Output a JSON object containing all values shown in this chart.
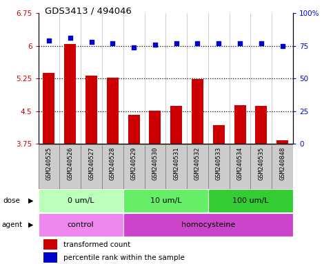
{
  "title": "GDS3413 / 494046",
  "samples": [
    "GSM240525",
    "GSM240526",
    "GSM240527",
    "GSM240528",
    "GSM240529",
    "GSM240530",
    "GSM240531",
    "GSM240532",
    "GSM240533",
    "GSM240534",
    "GSM240535",
    "GSM240848"
  ],
  "bar_values": [
    5.38,
    6.05,
    5.32,
    5.27,
    4.41,
    4.51,
    4.63,
    5.24,
    4.18,
    4.64,
    4.63,
    3.84
  ],
  "dot_values": [
    79,
    81,
    78,
    77,
    74,
    76,
    77,
    77,
    77,
    77,
    77,
    75
  ],
  "bar_color": "#cc0000",
  "dot_color": "#0000cc",
  "ylim_left": [
    3.75,
    6.75
  ],
  "ylim_right": [
    0,
    100
  ],
  "yticks_left": [
    3.75,
    4.5,
    5.25,
    6.0,
    6.75
  ],
  "yticks_right": [
    0,
    25,
    50,
    75,
    100
  ],
  "ytick_labels_left": [
    "3.75",
    "4.5",
    "5.25",
    "6",
    "6.75"
  ],
  "ytick_labels_right": [
    "0",
    "25",
    "50",
    "75",
    "100%"
  ],
  "hlines": [
    6.0,
    5.25,
    4.5
  ],
  "dose_groups": [
    {
      "label": "0 um/L",
      "start": 0,
      "end": 4,
      "color": "#bbffbb"
    },
    {
      "label": "10 um/L",
      "start": 4,
      "end": 8,
      "color": "#66ee66"
    },
    {
      "label": "100 um/L",
      "start": 8,
      "end": 12,
      "color": "#33cc33"
    }
  ],
  "agent_groups": [
    {
      "label": "control",
      "start": 0,
      "end": 4,
      "color": "#ee88ee"
    },
    {
      "label": "homocysteine",
      "start": 4,
      "end": 12,
      "color": "#cc44cc"
    }
  ],
  "dose_label": "dose",
  "agent_label": "agent",
  "legend_bar_label": "transformed count",
  "legend_dot_label": "percentile rank within the sample",
  "label_bg_color": "#cccccc",
  "label_border_color": "#888888"
}
